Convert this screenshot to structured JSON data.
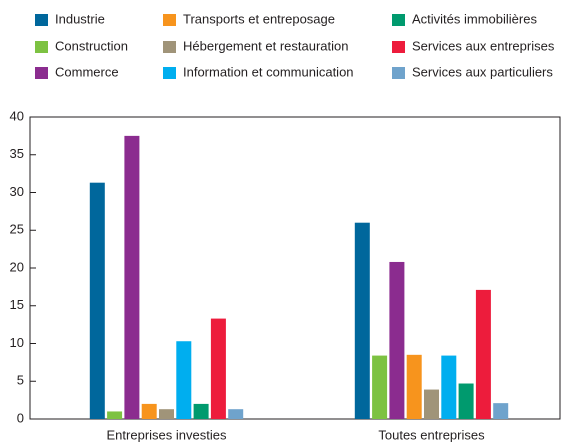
{
  "chart_data": {
    "type": "bar",
    "categories": [
      "Entreprises investies",
      "Toutes entreprises"
    ],
    "series": [
      {
        "name": "Industrie",
        "color": "#00679c",
        "values": [
          31.3,
          26.0
        ]
      },
      {
        "name": "Construction",
        "color": "#7dc242",
        "values": [
          1.0,
          8.4
        ]
      },
      {
        "name": "Commerce",
        "color": "#8b2c8f",
        "values": [
          37.5,
          20.8
        ]
      },
      {
        "name": "Transports et entreposage",
        "color": "#f7941d",
        "values": [
          2.0,
          8.5
        ]
      },
      {
        "name": "Hébergement et restauration",
        "color": "#a09479",
        "values": [
          1.3,
          3.9
        ]
      },
      {
        "name": "Information et communication",
        "color": "#00aeef",
        "values": [
          10.3,
          8.4
        ]
      },
      {
        "name": "Activités immobilières",
        "color": "#009a6e",
        "values": [
          2.0,
          4.7
        ]
      },
      {
        "name": "Services aux entreprises",
        "color": "#ed1c3c",
        "values": [
          13.3,
          17.1
        ]
      },
      {
        "name": "Services aux particuliers",
        "color": "#6fa3cc",
        "values": [
          1.3,
          2.1
        ]
      }
    ],
    "ylim": [
      0,
      40
    ],
    "yticks": [
      0,
      5,
      10,
      15,
      20,
      25,
      30,
      35,
      40
    ]
  }
}
